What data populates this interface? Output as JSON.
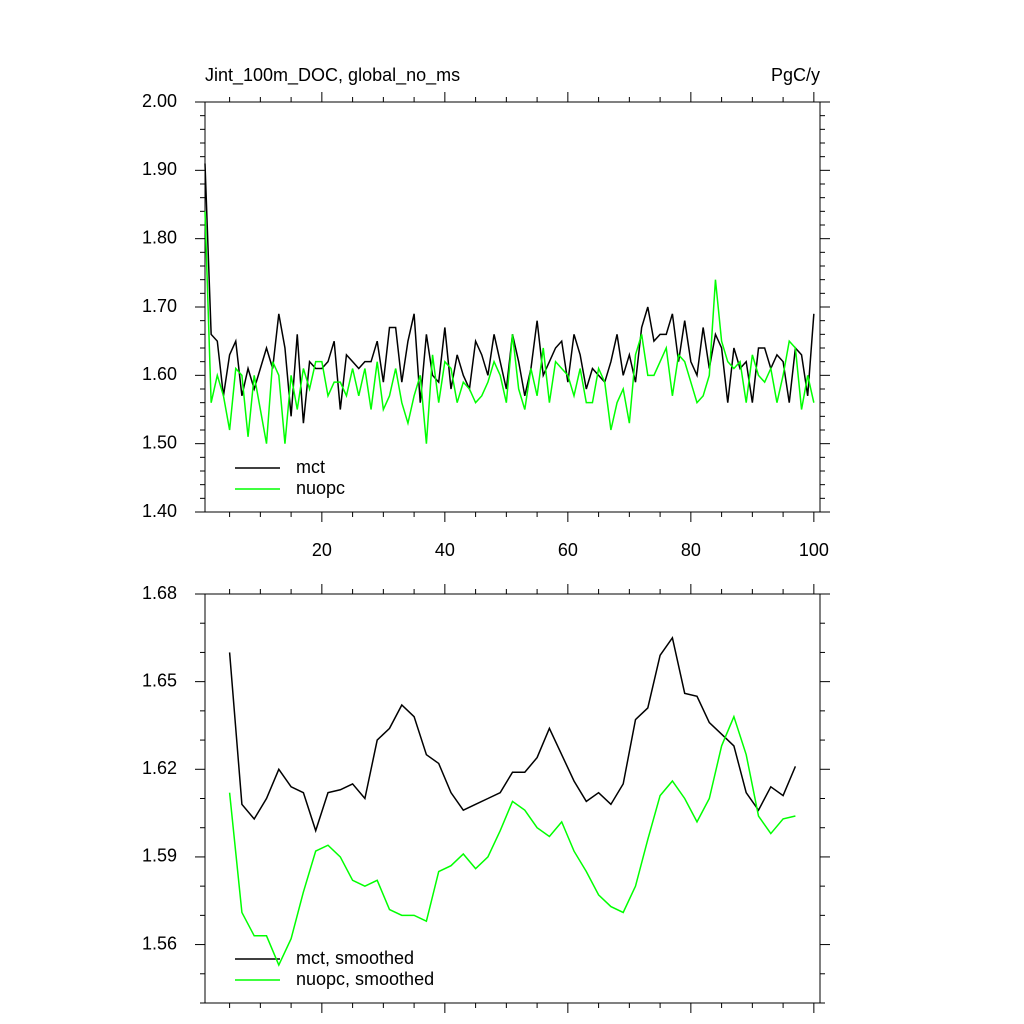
{
  "chart_data": [
    {
      "type": "line",
      "title": "Jint_100m_DOC, global_no_ms",
      "units": "PgC/y",
      "x": [
        1,
        2,
        3,
        4,
        5,
        6,
        7,
        8,
        9,
        10,
        11,
        12,
        13,
        14,
        15,
        16,
        17,
        18,
        19,
        20,
        21,
        22,
        23,
        24,
        25,
        26,
        27,
        28,
        29,
        30,
        31,
        32,
        33,
        34,
        35,
        36,
        37,
        38,
        39,
        40,
        41,
        42,
        43,
        44,
        45,
        46,
        47,
        48,
        49,
        50,
        51,
        52,
        53,
        54,
        55,
        56,
        57,
        58,
        59,
        60,
        61,
        62,
        63,
        64,
        65,
        66,
        67,
        68,
        69,
        70,
        71,
        72,
        73,
        74,
        75,
        76,
        77,
        78,
        79,
        80,
        81,
        82,
        83,
        84,
        85,
        86,
        87,
        88,
        89,
        90,
        91,
        92,
        93,
        94,
        95,
        96,
        97,
        98,
        99,
        100
      ],
      "series": [
        {
          "name": "mct",
          "color": "#000000",
          "values": [
            1.91,
            1.66,
            1.65,
            1.57,
            1.63,
            1.65,
            1.57,
            1.61,
            1.58,
            1.61,
            1.64,
            1.61,
            1.69,
            1.64,
            1.54,
            1.66,
            1.53,
            1.62,
            1.61,
            1.61,
            1.62,
            1.65,
            1.55,
            1.63,
            1.62,
            1.61,
            1.62,
            1.62,
            1.65,
            1.59,
            1.67,
            1.67,
            1.59,
            1.65,
            1.69,
            1.56,
            1.66,
            1.6,
            1.59,
            1.67,
            1.58,
            1.63,
            1.6,
            1.58,
            1.65,
            1.63,
            1.6,
            1.66,
            1.62,
            1.58,
            1.66,
            1.62,
            1.57,
            1.61,
            1.68,
            1.6,
            1.62,
            1.64,
            1.65,
            1.59,
            1.66,
            1.63,
            1.58,
            1.61,
            1.6,
            1.59,
            1.62,
            1.66,
            1.6,
            1.63,
            1.59,
            1.67,
            1.7,
            1.65,
            1.66,
            1.66,
            1.69,
            1.62,
            1.68,
            1.62,
            1.6,
            1.67,
            1.61,
            1.66,
            1.64,
            1.56,
            1.64,
            1.61,
            1.62,
            1.56,
            1.64,
            1.64,
            1.61,
            1.63,
            1.62,
            1.56,
            1.64,
            1.63,
            1.57,
            1.69
          ]
        },
        {
          "name": "nuopc",
          "color": "#00ff00",
          "values": [
            1.84,
            1.56,
            1.6,
            1.57,
            1.52,
            1.61,
            1.6,
            1.51,
            1.6,
            1.55,
            1.5,
            1.62,
            1.6,
            1.5,
            1.6,
            1.55,
            1.61,
            1.58,
            1.62,
            1.62,
            1.57,
            1.59,
            1.59,
            1.57,
            1.61,
            1.57,
            1.61,
            1.55,
            1.62,
            1.55,
            1.57,
            1.61,
            1.56,
            1.53,
            1.57,
            1.6,
            1.5,
            1.63,
            1.56,
            1.62,
            1.61,
            1.56,
            1.59,
            1.58,
            1.56,
            1.57,
            1.59,
            1.62,
            1.6,
            1.56,
            1.66,
            1.58,
            1.55,
            1.61,
            1.57,
            1.64,
            1.56,
            1.62,
            1.61,
            1.6,
            1.57,
            1.61,
            1.56,
            1.56,
            1.61,
            1.59,
            1.52,
            1.56,
            1.58,
            1.53,
            1.63,
            1.66,
            1.6,
            1.6,
            1.62,
            1.64,
            1.57,
            1.63,
            1.62,
            1.59,
            1.56,
            1.57,
            1.6,
            1.74,
            1.65,
            1.62,
            1.61,
            1.62,
            1.56,
            1.63,
            1.6,
            1.59,
            1.61,
            1.56,
            1.6,
            1.65,
            1.64,
            1.55,
            1.6,
            1.56
          ]
        }
      ],
      "xlim": [
        1,
        101
      ],
      "xticks": [
        20,
        40,
        60,
        80,
        100
      ],
      "ylim": [
        1.4,
        2.0
      ],
      "yticks": [
        {
          "value": 1.4,
          "label": "1.40"
        },
        {
          "value": 1.5,
          "label": "1.50"
        },
        {
          "value": 1.6,
          "label": "1.60"
        },
        {
          "value": 1.7,
          "label": "1.70"
        },
        {
          "value": 1.8,
          "label": "1.80"
        },
        {
          "value": 1.9,
          "label": "1.90"
        },
        {
          "value": 2.0,
          "label": "2.00"
        }
      ],
      "legend": "lower left"
    },
    {
      "type": "line",
      "x": [
        5,
        7,
        9,
        11,
        13,
        15,
        17,
        19,
        21,
        23,
        25,
        27,
        29,
        31,
        33,
        35,
        37,
        39,
        41,
        43,
        45,
        47,
        49,
        51,
        53,
        55,
        57,
        59,
        61,
        63,
        65,
        67,
        69,
        71,
        73,
        75,
        77,
        79,
        81,
        83,
        85,
        87,
        89,
        91,
        93,
        95,
        97
      ],
      "series": [
        {
          "name": "mct, smoothed",
          "color": "#000000",
          "values": [
            1.66,
            1.608,
            1.603,
            1.61,
            1.62,
            1.614,
            1.612,
            1.599,
            1.612,
            1.613,
            1.615,
            1.61,
            1.63,
            1.634,
            1.642,
            1.638,
            1.625,
            1.622,
            1.612,
            1.606,
            1.608,
            1.61,
            1.612,
            1.619,
            1.619,
            1.624,
            1.634,
            1.625,
            1.616,
            1.609,
            1.612,
            1.608,
            1.615,
            1.637,
            1.641,
            1.659,
            1.665,
            1.646,
            1.645,
            1.636,
            1.632,
            1.628,
            1.612,
            1.606,
            1.614,
            1.611,
            1.621
          ]
        },
        {
          "name": "nuopc, smoothed",
          "color": "#00ff00",
          "values": [
            1.612,
            1.571,
            1.563,
            1.563,
            1.553,
            1.562,
            1.578,
            1.592,
            1.594,
            1.59,
            1.582,
            1.58,
            1.582,
            1.572,
            1.57,
            1.57,
            1.568,
            1.585,
            1.587,
            1.591,
            1.586,
            1.59,
            1.599,
            1.609,
            1.606,
            1.6,
            1.597,
            1.602,
            1.592,
            1.585,
            1.577,
            1.573,
            1.571,
            1.58,
            1.596,
            1.611,
            1.616,
            1.61,
            1.602,
            1.61,
            1.628,
            1.638,
            1.625,
            1.604,
            1.598,
            1.603,
            1.604
          ]
        }
      ],
      "xlim": [
        1,
        101
      ],
      "xticks": [
        20,
        40,
        60,
        80,
        100
      ],
      "ylim": [
        1.54,
        1.68
      ],
      "yticks": [
        1.56,
        1.59,
        1.62,
        1.65,
        1.68
      ],
      "legend": "lower left"
    }
  ]
}
